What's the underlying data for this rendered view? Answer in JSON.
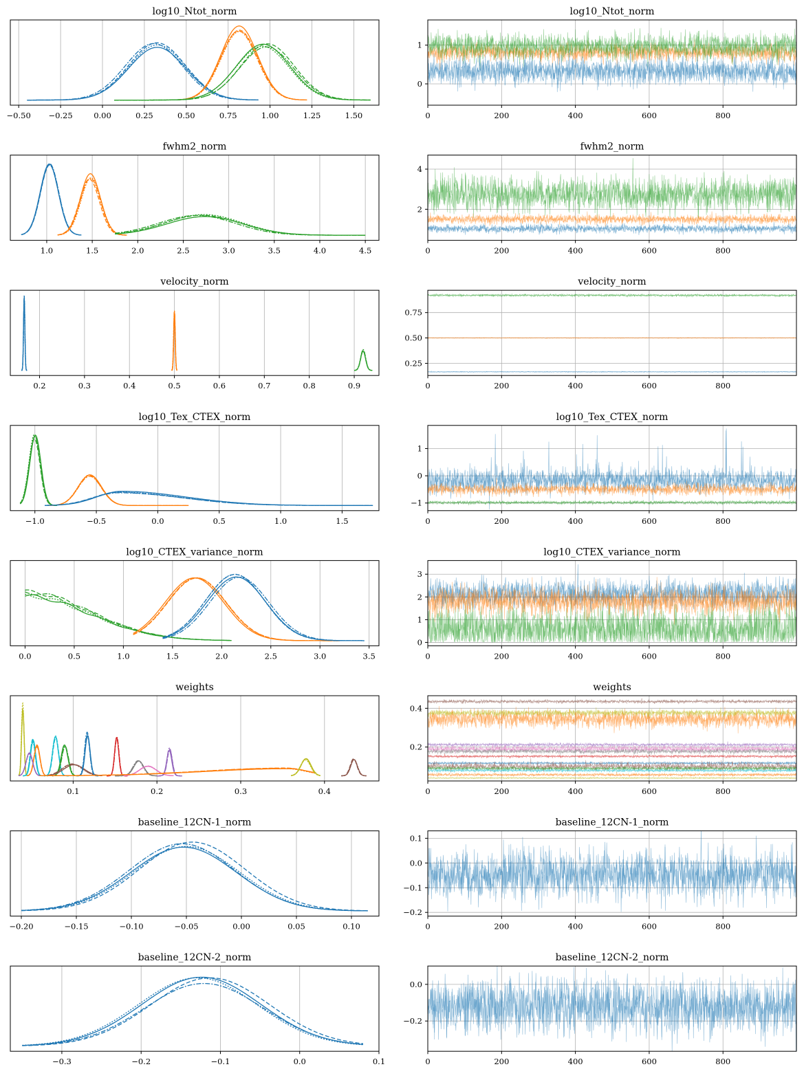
{
  "colors": [
    "#1f77b4",
    "#ff7f0e",
    "#2ca02c",
    "#d62728",
    "#9467bd",
    "#8c564b",
    "#e377c2",
    "#7f7f7f",
    "#bcbd22",
    "#17becf"
  ],
  "chart_data": [
    {
      "type": "line",
      "kind": "density",
      "title": "log10_Ntot_norm",
      "xlim": [
        -0.55,
        1.65
      ],
      "xticks": [
        -0.5,
        -0.25,
        0.0,
        0.25,
        0.5,
        0.75,
        1.0,
        1.25,
        1.5
      ],
      "xtick_labels": [
        "−0.50",
        "−0.25",
        "0.00",
        "0.25",
        "0.50",
        "0.75",
        "1.00",
        "1.25",
        "1.50"
      ],
      "grid": "x",
      "series": [
        {
          "color": 0,
          "mean": 0.32,
          "sd": 0.17,
          "peak": 0.72,
          "range": [
            -0.45,
            0.93
          ]
        },
        {
          "color": 1,
          "mean": 0.81,
          "sd": 0.11,
          "peak": 0.95,
          "range": [
            0.45,
            1.22
          ]
        },
        {
          "color": 2,
          "mean": 0.97,
          "sd": 0.16,
          "peak": 0.72,
          "range": [
            0.07,
            1.6
          ]
        }
      ]
    },
    {
      "type": "line",
      "kind": "trace",
      "title": "log10_Ntot_norm",
      "xlim": [
        0,
        999
      ],
      "xticks": [
        0,
        200,
        400,
        600,
        800
      ],
      "xtick_labels": [
        "0",
        "200",
        "400",
        "600",
        "800"
      ],
      "ylim": [
        -0.55,
        1.65
      ],
      "yticks": [
        0,
        1
      ],
      "ytick_labels": [
        "0",
        "1"
      ],
      "grid": "both",
      "series": [
        {
          "color": 1,
          "mean": 0.81,
          "sd": 0.11
        },
        {
          "color": 2,
          "mean": 0.97,
          "sd": 0.16
        },
        {
          "color": 0,
          "mean": 0.32,
          "sd": 0.17
        }
      ]
    },
    {
      "type": "line",
      "kind": "density",
      "title": "fwhm2_norm",
      "xlim": [
        0.6,
        4.65
      ],
      "xticks": [
        1.0,
        1.5,
        2.0,
        2.5,
        3.0,
        3.5,
        4.0,
        4.5
      ],
      "xtick_labels": [
        "1.0",
        "1.5",
        "2.0",
        "2.5",
        "3.0",
        "3.5",
        "4.0",
        "4.5"
      ],
      "grid": "x",
      "series": [
        {
          "color": 0,
          "mean": 1.03,
          "sd": 0.1,
          "peak": 0.95,
          "range": [
            0.72,
            1.38
          ]
        },
        {
          "color": 1,
          "mean": 1.48,
          "sd": 0.11,
          "peak": 0.78,
          "range": [
            1.12,
            1.88
          ]
        },
        {
          "color": 2,
          "mean": 2.7,
          "sd": 0.42,
          "peak": 0.26,
          "range": [
            1.75,
            4.5
          ]
        }
      ]
    },
    {
      "type": "line",
      "kind": "trace",
      "title": "fwhm2_norm",
      "xlim": [
        0,
        999
      ],
      "xticks": [
        0,
        200,
        400,
        600,
        800
      ],
      "xtick_labels": [
        "0",
        "200",
        "400",
        "600",
        "800"
      ],
      "ylim": [
        0.45,
        4.7
      ],
      "yticks": [
        2,
        4
      ],
      "ytick_labels": [
        "2",
        "4"
      ],
      "grid": "both",
      "series": [
        {
          "color": 2,
          "mean": 2.75,
          "sd": 0.42
        },
        {
          "color": 1,
          "mean": 1.5,
          "sd": 0.11
        },
        {
          "color": 0,
          "mean": 1.03,
          "sd": 0.1
        }
      ]
    },
    {
      "type": "line",
      "kind": "density",
      "title": "velocity_norm",
      "xlim": [
        0.135,
        0.955
      ],
      "xticks": [
        0.2,
        0.3,
        0.4,
        0.5,
        0.6,
        0.7,
        0.8,
        0.9
      ],
      "xtick_labels": [
        "0.2",
        "0.3",
        "0.4",
        "0.5",
        "0.6",
        "0.7",
        "0.8",
        "0.9"
      ],
      "grid": "x",
      "series": [
        {
          "color": 0,
          "mean": 0.166,
          "sd": 0.0015,
          "peak": 0.95,
          "range": [
            0.16,
            0.172
          ]
        },
        {
          "color": 1,
          "mean": 0.5,
          "sd": 0.0017,
          "peak": 0.77,
          "range": [
            0.494,
            0.506
          ]
        },
        {
          "color": 2,
          "mean": 0.92,
          "sd": 0.0055,
          "peak": 0.27,
          "range": [
            0.9,
            0.94
          ]
        }
      ]
    },
    {
      "type": "line",
      "kind": "trace",
      "title": "velocity_norm",
      "xlim": [
        0,
        999
      ],
      "xticks": [
        0,
        200,
        400,
        600,
        800
      ],
      "xtick_labels": [
        "0",
        "200",
        "400",
        "600",
        "800"
      ],
      "ylim": [
        0.13,
        0.97
      ],
      "yticks": [
        0.25,
        0.5,
        0.75
      ],
      "ytick_labels": [
        "0.25",
        "0.50",
        "0.75"
      ],
      "grid": "both",
      "series": [
        {
          "color": 2,
          "mean": 0.92,
          "sd": 0.0055
        },
        {
          "color": 1,
          "mean": 0.5,
          "sd": 0.0017
        },
        {
          "color": 0,
          "mean": 0.166,
          "sd": 0.0015
        }
      ]
    },
    {
      "type": "line",
      "kind": "density",
      "title": "log10_Tex_CTEX_norm",
      "xlim": [
        -1.2,
        1.8
      ],
      "xticks": [
        -1.0,
        -0.5,
        0.0,
        0.5,
        1.0,
        1.5
      ],
      "xtick_labels": [
        "−1.0",
        "−0.5",
        "0.0",
        "0.5",
        "1.0",
        "1.5"
      ],
      "grid": "x",
      "series": [
        {
          "color": 2,
          "mean": -1.0,
          "sd": 0.045,
          "peak": 0.92,
          "range": [
            -1.12,
            -0.82
          ]
        },
        {
          "color": 1,
          "mean": -0.55,
          "sd": 0.095,
          "peak": 0.4,
          "range": [
            -0.9,
            0.25
          ]
        },
        {
          "color": 0,
          "mean": -0.32,
          "sd": 0.2,
          "peak": 0.18,
          "range": [
            -0.92,
            1.75
          ],
          "skew": 1
        }
      ]
    },
    {
      "type": "line",
      "kind": "trace",
      "title": "log10_Tex_CTEX_norm",
      "xlim": [
        0,
        999
      ],
      "xticks": [
        0,
        200,
        400,
        600,
        800
      ],
      "xtick_labels": [
        "0",
        "200",
        "400",
        "600",
        "800"
      ],
      "ylim": [
        -1.28,
        1.85
      ],
      "yticks": [
        -1,
        0,
        1
      ],
      "ytick_labels": [
        "−1",
        "0",
        "1"
      ],
      "grid": "both",
      "series": [
        {
          "color": 0,
          "mean": -0.18,
          "sd": 0.22,
          "spiky": 1
        },
        {
          "color": 1,
          "mean": -0.5,
          "sd": 0.1
        },
        {
          "color": 2,
          "mean": -0.98,
          "sd": 0.03
        }
      ]
    },
    {
      "type": "line",
      "kind": "density",
      "title": "log10_CTEX_variance_norm",
      "xlim": [
        -0.15,
        3.6
      ],
      "xticks": [
        0.0,
        0.5,
        1.0,
        1.5,
        2.0,
        2.5,
        3.0,
        3.5
      ],
      "xtick_labels": [
        "0.0",
        "0.5",
        "1.0",
        "1.5",
        "2.0",
        "2.5",
        "3.0",
        "3.5"
      ],
      "grid": "x",
      "series": [
        {
          "color": 2,
          "shape": "halfnorm",
          "mean": 0.0,
          "sd": 0.65,
          "peak": 0.62,
          "range": [
            0.0,
            2.1
          ]
        },
        {
          "color": 1,
          "mean": 1.75,
          "sd": 0.3,
          "peak": 0.85,
          "range": [
            1.1,
            3.2
          ]
        },
        {
          "color": 0,
          "mean": 2.15,
          "sd": 0.3,
          "peak": 0.85,
          "range": [
            1.4,
            3.45
          ]
        }
      ]
    },
    {
      "type": "line",
      "kind": "trace",
      "title": "log10_CTEX_variance_norm",
      "xlim": [
        0,
        999
      ],
      "xticks": [
        0,
        200,
        400,
        600,
        800
      ],
      "xtick_labels": [
        "0",
        "200",
        "400",
        "600",
        "800"
      ],
      "ylim": [
        -0.15,
        3.6
      ],
      "yticks": [
        0,
        1,
        2,
        3
      ],
      "ytick_labels": [
        "0",
        "1",
        "2",
        "3"
      ],
      "grid": "both",
      "series": [
        {
          "color": 2,
          "mean": 0.55,
          "sd": 0.5,
          "floor": 0
        },
        {
          "color": 0,
          "mean": 2.15,
          "sd": 0.3
        },
        {
          "color": 1,
          "mean": 1.8,
          "sd": 0.3
        }
      ]
    },
    {
      "type": "line",
      "kind": "density",
      "title": "weights",
      "xlim": [
        0.025,
        0.465
      ],
      "xticks": [
        0.1,
        0.2,
        0.3,
        0.4
      ],
      "xtick_labels": [
        "0.1",
        "0.2",
        "0.3",
        "0.4"
      ],
      "grid": "x",
      "series": [
        {
          "color": 8,
          "mean": 0.04,
          "sd": 0.0015,
          "peak": 0.92,
          "range": [
            0.035,
            0.045
          ]
        },
        {
          "color": 9,
          "mean": 0.052,
          "sd": 0.003,
          "peak": 0.46,
          "range": [
            0.04,
            0.064
          ]
        },
        {
          "color": 1,
          "mean": 0.057,
          "sd": 0.0035,
          "peak": 0.4,
          "range": [
            0.045,
            0.07
          ]
        },
        {
          "color": 4,
          "mean": 0.048,
          "sd": 0.004,
          "peak": 0.3,
          "range": [
            0.035,
            0.06
          ]
        },
        {
          "color": 9,
          "mean": 0.079,
          "sd": 0.0035,
          "peak": 0.52,
          "range": [
            0.065,
            0.095
          ]
        },
        {
          "color": 2,
          "mean": 0.09,
          "sd": 0.004,
          "peak": 0.4,
          "range": [
            0.075,
            0.105
          ]
        },
        {
          "color": 5,
          "mean": 0.1,
          "sd": 0.012,
          "peak": 0.15,
          "range": [
            0.07,
            0.135
          ]
        },
        {
          "color": 0,
          "mean": 0.117,
          "sd": 0.003,
          "peak": 0.56,
          "range": [
            0.105,
            0.13
          ]
        },
        {
          "color": 3,
          "mean": 0.152,
          "sd": 0.0025,
          "peak": 0.5,
          "range": [
            0.14,
            0.165
          ]
        },
        {
          "color": 7,
          "mean": 0.178,
          "sd": 0.006,
          "peak": 0.2,
          "range": [
            0.15,
            0.2
          ]
        },
        {
          "color": 6,
          "mean": 0.19,
          "sd": 0.01,
          "peak": 0.13,
          "range": [
            0.16,
            0.22
          ]
        },
        {
          "color": 4,
          "mean": 0.215,
          "sd": 0.003,
          "peak": 0.35,
          "range": [
            0.2,
            0.23
          ]
        },
        {
          "color": 1,
          "mean": 0.355,
          "sd": 0.025,
          "peak": 0.1,
          "range": [
            0.06,
            0.39
          ],
          "skew": -1
        },
        {
          "color": 8,
          "mean": 0.378,
          "sd": 0.006,
          "peak": 0.22,
          "range": [
            0.36,
            0.395
          ]
        },
        {
          "color": 5,
          "mean": 0.435,
          "sd": 0.004,
          "peak": 0.23,
          "range": [
            0.42,
            0.45
          ]
        }
      ]
    },
    {
      "type": "line",
      "kind": "trace",
      "title": "weights",
      "xlim": [
        0,
        999
      ],
      "xticks": [
        0,
        200,
        400,
        600,
        800
      ],
      "xtick_labels": [
        "0",
        "200",
        "400",
        "600",
        "800"
      ],
      "ylim": [
        0.025,
        0.465
      ],
      "yticks": [
        0.2,
        0.4
      ],
      "ytick_labels": [
        "0.2",
        "0.4"
      ],
      "grid": "both",
      "series": [
        {
          "color": 5,
          "mean": 0.435,
          "sd": 0.004
        },
        {
          "color": 1,
          "mean": 0.345,
          "sd": 0.022
        },
        {
          "color": 8,
          "mean": 0.376,
          "sd": 0.008
        },
        {
          "color": 4,
          "mean": 0.212,
          "sd": 0.004
        },
        {
          "color": 6,
          "mean": 0.19,
          "sd": 0.008
        },
        {
          "color": 7,
          "mean": 0.178,
          "sd": 0.006
        },
        {
          "color": 3,
          "mean": 0.152,
          "sd": 0.003
        },
        {
          "color": 0,
          "mean": 0.117,
          "sd": 0.003
        },
        {
          "color": 5,
          "mean": 0.1,
          "sd": 0.01
        },
        {
          "color": 2,
          "mean": 0.09,
          "sd": 0.004
        },
        {
          "color": 9,
          "mean": 0.079,
          "sd": 0.0035
        },
        {
          "color": 1,
          "mean": 0.057,
          "sd": 0.0035
        },
        {
          "color": 8,
          "mean": 0.04,
          "sd": 0.0015
        }
      ]
    },
    {
      "type": "line",
      "kind": "density",
      "title": "baseline_12CN-1_norm",
      "xlim": [
        -0.21,
        0.125
      ],
      "xticks": [
        -0.2,
        -0.15,
        -0.1,
        -0.05,
        0.0,
        0.05,
        0.1
      ],
      "xtick_labels": [
        "−0.20",
        "−0.15",
        "−0.10",
        "−0.05",
        "0.00",
        "0.05",
        "0.10"
      ],
      "grid": "x",
      "series": [
        {
          "color": 0,
          "mean": -0.048,
          "sd": 0.048,
          "peak": 0.88,
          "range": [
            -0.2,
            0.115
          ]
        }
      ]
    },
    {
      "type": "line",
      "kind": "trace",
      "title": "baseline_12CN-1_norm",
      "xlim": [
        0,
        999
      ],
      "xticks": [
        0,
        200,
        400,
        600,
        800
      ],
      "xtick_labels": [
        "0",
        "200",
        "400",
        "600",
        "800"
      ],
      "ylim": [
        -0.215,
        0.13
      ],
      "yticks": [
        -0.2,
        -0.1,
        0.0,
        0.1
      ],
      "ytick_labels": [
        "−0.2",
        "−0.1",
        "0.0",
        "0.1"
      ],
      "grid": "both",
      "series": [
        {
          "color": 0,
          "mean": -0.048,
          "sd": 0.048
        }
      ]
    },
    {
      "type": "line",
      "kind": "density",
      "title": "baseline_12CN-2_norm",
      "xlim": [
        -0.365,
        0.1
      ],
      "xticks": [
        -0.3,
        -0.2,
        -0.1,
        0.0,
        0.1
      ],
      "xtick_labels": [
        "−0.3",
        "−0.2",
        "−0.1",
        "0.0",
        "0.1"
      ],
      "grid": "x",
      "series": [
        {
          "color": 0,
          "mean": -0.12,
          "sd": 0.075,
          "peak": 0.88,
          "range": [
            -0.35,
            0.08
          ]
        }
      ]
    },
    {
      "type": "line",
      "kind": "trace",
      "title": "baseline_12CN-2_norm",
      "xlim": [
        0,
        999
      ],
      "xticks": [
        0,
        200,
        400,
        600,
        800
      ],
      "xtick_labels": [
        "0",
        "200",
        "400",
        "600",
        "800"
      ],
      "ylim": [
        -0.365,
        0.1
      ],
      "yticks": [
        -0.2,
        0.0
      ],
      "ytick_labels": [
        "−0.2",
        "0.0"
      ],
      "grid": "both",
      "series": [
        {
          "color": 0,
          "mean": -0.12,
          "sd": 0.075
        }
      ]
    }
  ]
}
